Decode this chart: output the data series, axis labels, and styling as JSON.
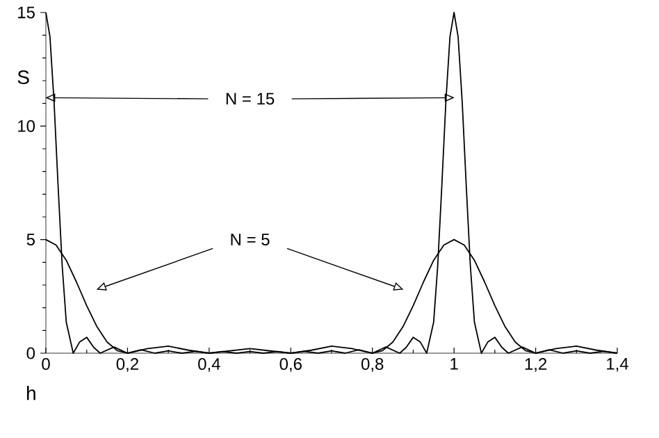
{
  "chart_data": {
    "type": "line",
    "xlabel": "h",
    "ylabel": "S",
    "xlim": [
      0,
      1.4
    ],
    "ylim": [
      0,
      15
    ],
    "xticks": [
      0,
      {
        "value": 0.2,
        "label": "0,2"
      },
      {
        "value": 0.4,
        "label": "0,4"
      },
      {
        "value": 0.6,
        "label": "0,6"
      },
      {
        "value": 0.8,
        "label": "0,8"
      },
      1,
      {
        "value": 1.2,
        "label": "1,2"
      },
      {
        "value": 1.4,
        "label": "1,4"
      }
    ],
    "yticks": [
      0,
      5,
      10,
      15
    ],
    "marker": "none",
    "line_style": "solid",
    "series": [
      {
        "color": "#000000",
        "x": [
          0,
          0.01,
          0.02,
          0.03,
          0.04,
          0.05,
          0.067,
          0.083,
          0.1,
          0.117,
          0.133,
          0.167,
          0.2,
          0.233,
          0.267,
          0.3,
          0.333,
          0.367,
          0.4,
          0.433,
          0.467,
          0.5,
          0.533,
          0.567,
          0.6,
          0.633,
          0.667,
          0.7,
          0.733,
          0.767,
          0.8,
          0.833,
          0.867,
          0.883,
          0.9,
          0.917,
          0.933,
          0.95,
          0.96,
          0.97,
          0.98,
          0.99,
          1,
          1.01,
          1.02,
          1.03,
          1.04,
          1.05,
          1.067,
          1.083,
          1.1,
          1.117,
          1.133,
          1.167,
          1.2,
          1.233,
          1.267,
          1.3,
          1.333,
          1.367,
          1.4
        ],
        "values": [
          15,
          13.93,
          11.07,
          7.34,
          3.84,
          1.36,
          0,
          0.5,
          0.7,
          0.26,
          0,
          0.27,
          0,
          0.15,
          0,
          0.1,
          0,
          0.08,
          0,
          0.07,
          0,
          0.07,
          0,
          0.07,
          0,
          0.08,
          0,
          0.1,
          0,
          0.15,
          0,
          0.27,
          0,
          0.26,
          0.7,
          0.5,
          0,
          1.36,
          3.84,
          7.34,
          11.07,
          13.93,
          15,
          13.93,
          11.07,
          7.34,
          3.84,
          1.36,
          0,
          0.5,
          0.7,
          0.26,
          0,
          0.27,
          0,
          0.15,
          0,
          0.1,
          0,
          0.08,
          0
        ]
      },
      {
        "color": "#000000",
        "x": [
          0,
          0.025,
          0.05,
          0.075,
          0.1,
          0.125,
          0.15,
          0.175,
          0.2,
          0.25,
          0.3,
          0.35,
          0.4,
          0.45,
          0.5,
          0.55,
          0.6,
          0.65,
          0.7,
          0.75,
          0.8,
          0.825,
          0.85,
          0.875,
          0.9,
          0.925,
          0.95,
          0.975,
          1,
          1.025,
          1.05,
          1.075,
          1.1,
          1.125,
          1.15,
          1.175,
          1.2,
          1.25,
          1.3,
          1.35,
          1.4
        ],
        "values": [
          5,
          4.76,
          4.09,
          3.13,
          2.09,
          1.17,
          0.49,
          0.11,
          0,
          0.2,
          0.31,
          0.13,
          0,
          0.1,
          0.2,
          0.1,
          0,
          0.13,
          0.31,
          0.2,
          0,
          0.11,
          0.49,
          1.17,
          2.09,
          3.13,
          4.09,
          4.76,
          5,
          4.76,
          4.09,
          3.13,
          2.09,
          1.17,
          0.49,
          0.11,
          0,
          0.2,
          0.31,
          0.13,
          0
        ]
      }
    ],
    "annotations": [
      {
        "text": "N = 15",
        "x": 0.5,
        "y": 11.2
      },
      {
        "text": "N = 5",
        "x": 0.5,
        "y": 5
      }
    ]
  }
}
